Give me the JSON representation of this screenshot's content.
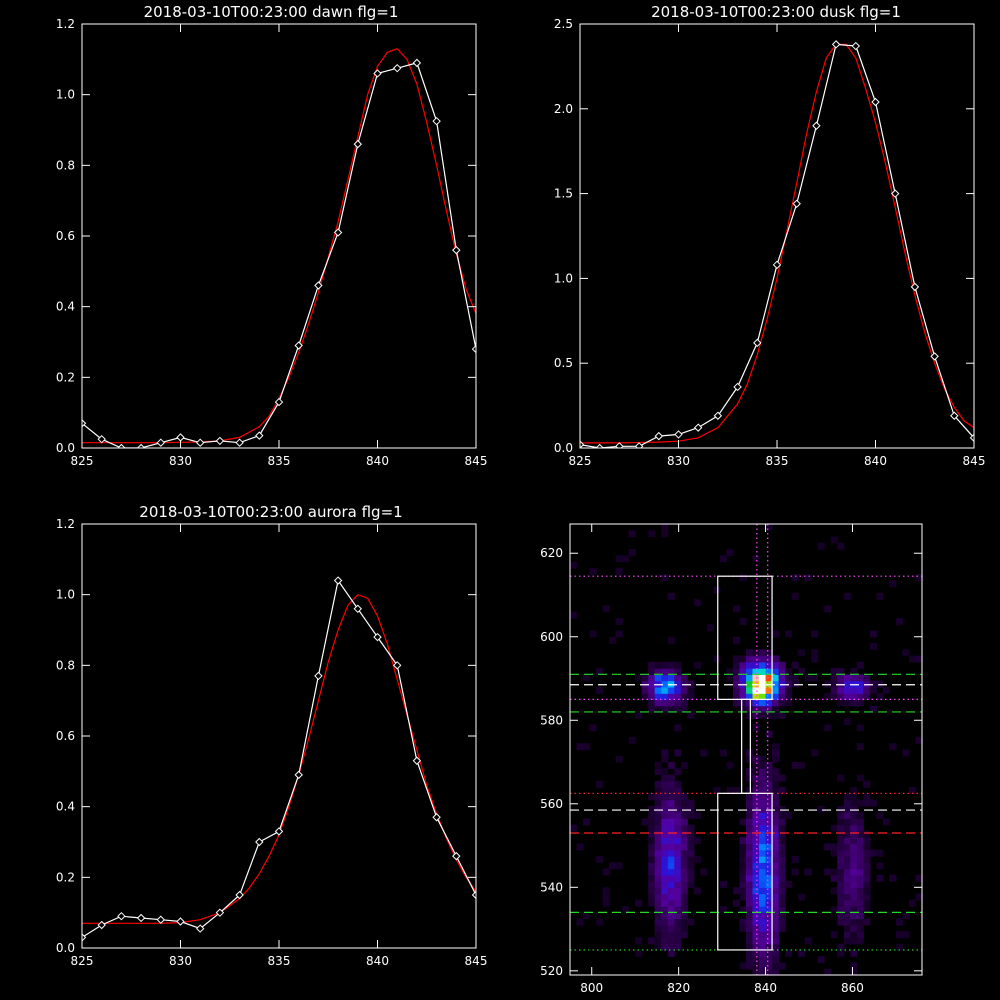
{
  "chart_data": [
    {
      "type": "line",
      "title": "2018-03-10T00:23:00 dawn flg=1",
      "xlim": [
        825,
        845
      ],
      "ylim": [
        0,
        1.2
      ],
      "xticks": [
        825,
        830,
        835,
        840,
        845
      ],
      "yticks": [
        0,
        0.2,
        0.4,
        0.6,
        0.8,
        1.0,
        1.2
      ],
      "ytick_labels": [
        "0.0",
        "0.2",
        "0.4",
        "0.6",
        "0.8",
        "1.0",
        "1.2"
      ],
      "series": [
        {
          "color": "#ffffff",
          "marker": "diamond",
          "x": [
            825,
            826,
            827,
            828,
            829,
            830,
            831,
            832,
            833,
            834,
            835,
            836,
            837,
            838,
            839,
            840,
            841,
            842,
            843,
            844,
            845
          ],
          "y": [
            0.07,
            0.025,
            0.0,
            0.0,
            0.015,
            0.03,
            0.015,
            0.02,
            0.015,
            0.035,
            0.13,
            0.29,
            0.46,
            0.61,
            0.86,
            1.06,
            1.075,
            1.09,
            0.925,
            0.56,
            0.28
          ]
        },
        {
          "color": "#ff0000",
          "marker": "none",
          "x": [
            825,
            826,
            827,
            828,
            829,
            830,
            831,
            832,
            833,
            834,
            834.5,
            835,
            835.5,
            836,
            836.5,
            837,
            837.5,
            838,
            838.5,
            839,
            839.5,
            840,
            840.5,
            841,
            841.5,
            842,
            842.5,
            843,
            843.5,
            844,
            844.5,
            845
          ],
          "y": [
            0.015,
            0.015,
            0.015,
            0.015,
            0.015,
            0.016,
            0.017,
            0.02,
            0.03,
            0.06,
            0.09,
            0.14,
            0.2,
            0.27,
            0.35,
            0.44,
            0.54,
            0.64,
            0.76,
            0.88,
            1.0,
            1.08,
            1.12,
            1.13,
            1.1,
            1.03,
            0.92,
            0.8,
            0.67,
            0.55,
            0.45,
            0.38
          ]
        }
      ]
    },
    {
      "type": "line",
      "title": "2018-03-10T00:23:00 dusk flg=1",
      "xlim": [
        825,
        845
      ],
      "ylim": [
        0,
        2.5
      ],
      "xticks": [
        825,
        830,
        835,
        840,
        845
      ],
      "yticks": [
        0,
        0.5,
        1.0,
        1.5,
        2.0,
        2.5
      ],
      "ytick_labels": [
        "0.0",
        "0.5",
        "1.0",
        "1.5",
        "2.0",
        "2.5"
      ],
      "series": [
        {
          "color": "#ffffff",
          "marker": "diamond",
          "x": [
            825,
            826,
            827,
            828,
            829,
            830,
            831,
            832,
            833,
            834,
            835,
            836,
            837,
            838,
            839,
            840,
            841,
            842,
            843,
            844,
            845
          ],
          "y": [
            0.02,
            0.0,
            0.01,
            0.01,
            0.07,
            0.08,
            0.12,
            0.19,
            0.36,
            0.62,
            1.08,
            1.44,
            1.9,
            2.38,
            2.37,
            2.04,
            1.5,
            0.95,
            0.54,
            0.19,
            0.06
          ]
        },
        {
          "color": "#ff0000",
          "marker": "none",
          "x": [
            825,
            827,
            829,
            830,
            831,
            832,
            833,
            833.5,
            834,
            834.5,
            835,
            835.5,
            836,
            836.5,
            837,
            837.5,
            838,
            838.5,
            839,
            839.5,
            840,
            840.5,
            841,
            841.5,
            842,
            842.5,
            843,
            843.5,
            844,
            844.5,
            845
          ],
          "y": [
            0.03,
            0.03,
            0.035,
            0.04,
            0.06,
            0.12,
            0.26,
            0.38,
            0.55,
            0.76,
            1.0,
            1.28,
            1.56,
            1.85,
            2.1,
            2.3,
            2.38,
            2.38,
            2.3,
            2.12,
            1.92,
            1.68,
            1.42,
            1.15,
            0.9,
            0.68,
            0.5,
            0.35,
            0.24,
            0.16,
            0.12
          ]
        }
      ]
    },
    {
      "type": "line",
      "title": "2018-03-10T00:23:00 aurora flg=1",
      "xlim": [
        825,
        845
      ],
      "ylim": [
        0,
        1.2
      ],
      "xticks": [
        825,
        830,
        835,
        840,
        845
      ],
      "yticks": [
        0,
        0.2,
        0.4,
        0.6,
        0.8,
        1.0,
        1.2
      ],
      "ytick_labels": [
        "0.0",
        "0.2",
        "0.4",
        "0.6",
        "0.8",
        "1.0",
        "1.2"
      ],
      "series": [
        {
          "color": "#ffffff",
          "marker": "diamond",
          "x": [
            825,
            826,
            827,
            828,
            829,
            830,
            831,
            832,
            833,
            834,
            835,
            836,
            837,
            838,
            839,
            840,
            841,
            842,
            843,
            844,
            845
          ],
          "y": [
            0.03,
            0.065,
            0.09,
            0.085,
            0.08,
            0.075,
            0.055,
            0.1,
            0.15,
            0.3,
            0.33,
            0.49,
            0.77,
            1.04,
            0.96,
            0.88,
            0.8,
            0.53,
            0.37,
            0.26,
            0.15
          ]
        },
        {
          "color": "#ff0000",
          "marker": "none",
          "x": [
            825,
            827,
            829,
            830,
            831,
            831.5,
            832,
            832.5,
            833,
            833.5,
            834,
            834.5,
            835,
            835.5,
            836,
            836.5,
            837,
            837.5,
            838,
            838.5,
            839,
            839.5,
            840,
            840.5,
            841,
            841.5,
            842,
            842.5,
            843,
            843.5,
            844,
            844.5,
            845
          ],
          "y": [
            0.07,
            0.07,
            0.07,
            0.072,
            0.08,
            0.09,
            0.1,
            0.12,
            0.14,
            0.17,
            0.21,
            0.26,
            0.32,
            0.4,
            0.49,
            0.59,
            0.7,
            0.81,
            0.9,
            0.97,
            1.0,
            0.99,
            0.94,
            0.86,
            0.76,
            0.66,
            0.56,
            0.46,
            0.38,
            0.31,
            0.25,
            0.2,
            0.16
          ]
        }
      ]
    },
    {
      "type": "heatmap",
      "title": "",
      "xlim": [
        795,
        876
      ],
      "ylim": [
        519,
        627
      ],
      "xticks": [
        800,
        820,
        840,
        860
      ],
      "yticks": [
        520,
        540,
        560,
        580,
        600,
        620
      ],
      "ytick_labels": [
        "520",
        "540",
        "560",
        "580",
        "600",
        "620"
      ],
      "blobs": [
        {
          "x": 817,
          "y": 588,
          "sx": 2.5,
          "sy": 2.5,
          "amp": 0.55
        },
        {
          "x": 839,
          "y": 589,
          "sx": 2.8,
          "sy": 3.2,
          "amp": 1.0
        },
        {
          "x": 839,
          "y": 587,
          "sx": 1.2,
          "sy": 1.0,
          "amp": 0.6
        },
        {
          "x": 860,
          "y": 588,
          "sx": 2.5,
          "sy": 2.0,
          "amp": 0.35
        },
        {
          "x": 818,
          "y": 546,
          "sx": 2.4,
          "sy": 11.0,
          "amp": 0.32
        },
        {
          "x": 839.5,
          "y": 544,
          "sx": 2.4,
          "sy": 13.0,
          "amp": 0.42
        },
        {
          "x": 860,
          "y": 544,
          "sx": 2.6,
          "sy": 11.0,
          "amp": 0.15
        }
      ],
      "rectangles": [
        {
          "x0": 829,
          "x1": 841.5,
          "y0": 585,
          "y1": 614.5,
          "color": "#ffffff"
        },
        {
          "x0": 829,
          "x1": 841.5,
          "y0": 525,
          "y1": 562.5,
          "color": "#ffffff"
        },
        {
          "x0": 834.5,
          "x1": 836.5,
          "y0": 562.5,
          "y1": 585,
          "color": "#ffffff"
        }
      ],
      "hlines": [
        {
          "y": 614.5,
          "color": "#ff44ff",
          "style": "dotted"
        },
        {
          "y": 591,
          "color": "#22dd22",
          "style": "dashed"
        },
        {
          "y": 588.5,
          "color": "#ffffff",
          "style": "dashed"
        },
        {
          "y": 585,
          "color": "#ff44ff",
          "style": "dotted"
        },
        {
          "y": 582,
          "color": "#22dd22",
          "style": "dashed"
        },
        {
          "y": 562.5,
          "color": "#ff2222",
          "style": "dotted"
        },
        {
          "y": 558.5,
          "color": "#ffffff",
          "style": "dashed"
        },
        {
          "y": 553,
          "color": "#ff2222",
          "style": "dashed"
        },
        {
          "y": 534,
          "color": "#22dd22",
          "style": "dashed"
        },
        {
          "y": 525,
          "color": "#22dd22",
          "style": "dotted"
        }
      ],
      "vlines": [
        {
          "x": 838,
          "color": "#ff44ff",
          "style": "dotted"
        },
        {
          "x": 840.5,
          "color": "#ff44ff",
          "style": "dotted"
        }
      ]
    }
  ]
}
